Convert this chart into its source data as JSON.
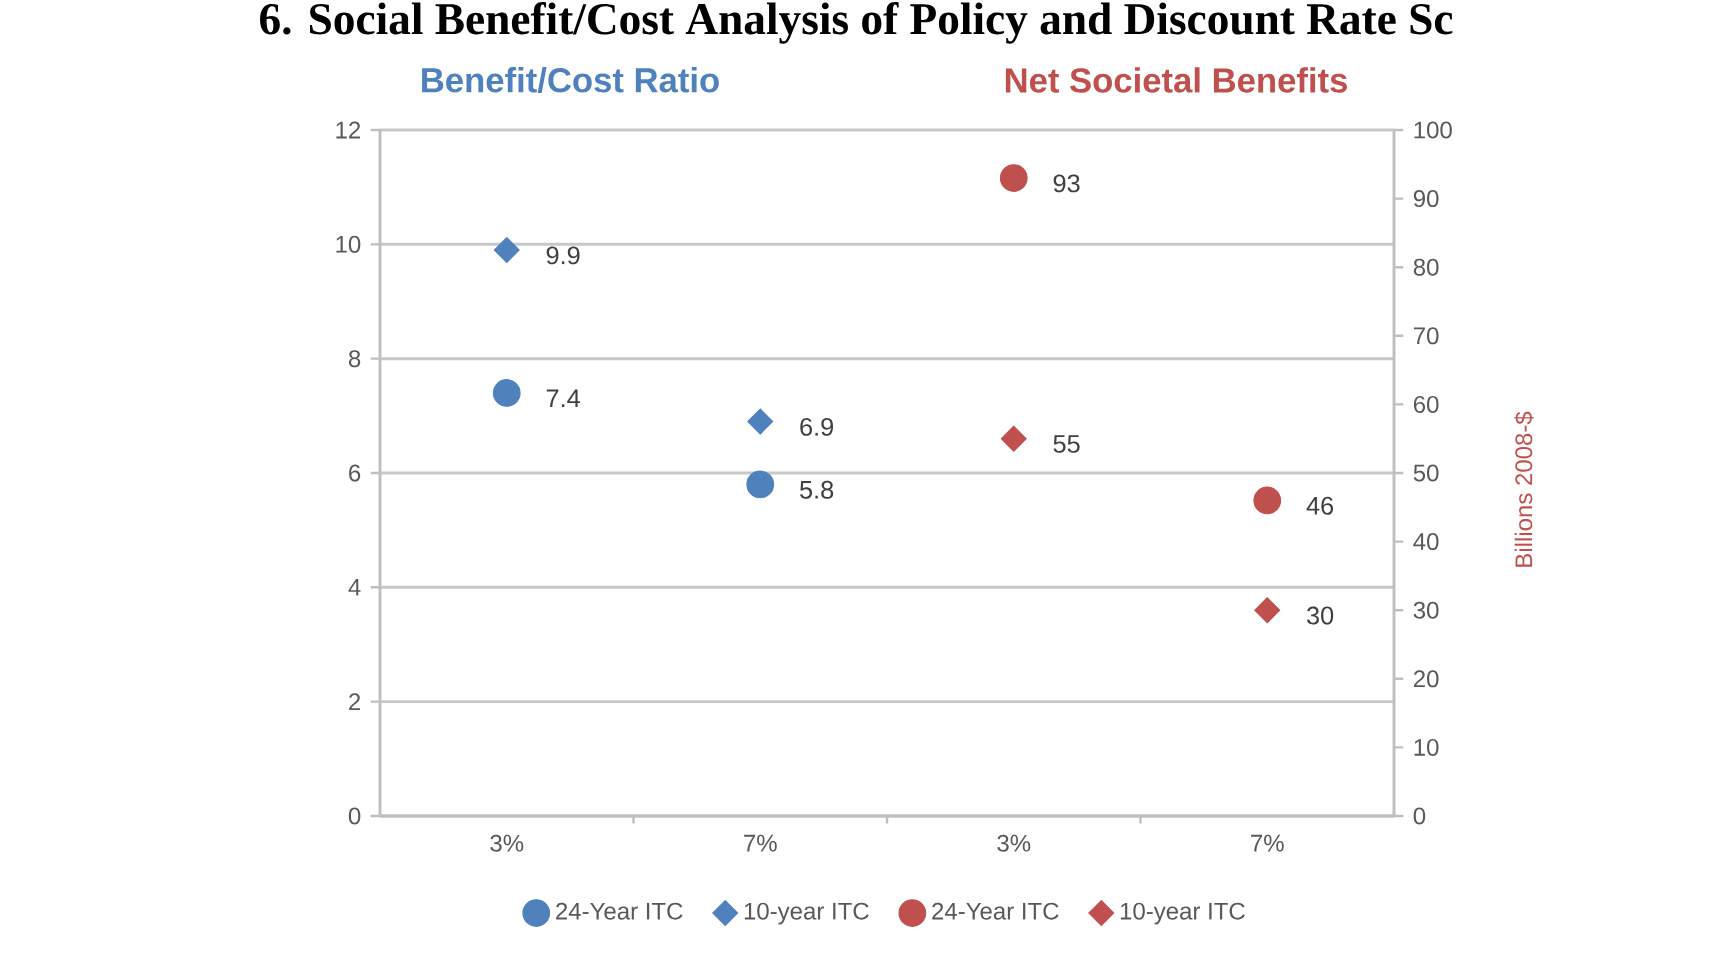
{
  "chart_data": {
    "type": "scatter",
    "title": "6. Social Benefit/Cost Analysis of Policy and Discount Rate Sc",
    "ylabel": "Benefit/Cost Ratio",
    "y2label": "Billions 2008-$",
    "annotations": [
      "Net Societal Benefits"
    ],
    "categories": [
      "3%",
      "7%",
      "3%",
      "7%"
    ],
    "ylim": [
      0,
      12
    ],
    "yticks": [
      0,
      2,
      4,
      6,
      8,
      10,
      12
    ],
    "y2lim": [
      0,
      100
    ],
    "y2ticks": [
      0,
      10,
      20,
      30,
      40,
      50,
      60,
      70,
      80,
      90,
      100
    ],
    "grid": "y",
    "legend": "bottom",
    "data_labels": true,
    "series": [
      {
        "name": "24-Year ITC",
        "color": "#4f81bd",
        "marker": "circle",
        "axis": "y",
        "values": [
          7.4,
          5.8,
          null,
          null
        ]
      },
      {
        "name": "10-year ITC",
        "color": "#4f81bd",
        "marker": "diamond",
        "axis": "y",
        "values": [
          9.9,
          6.9,
          null,
          null
        ]
      },
      {
        "name": "24-Year ITC",
        "color": "#c0504d",
        "marker": "circle",
        "axis": "y2",
        "values": [
          null,
          null,
          93,
          46
        ]
      },
      {
        "name": "10-year ITC",
        "color": "#c0504d",
        "marker": "diamond",
        "axis": "y2",
        "values": [
          null,
          null,
          55,
          30
        ]
      }
    ]
  }
}
